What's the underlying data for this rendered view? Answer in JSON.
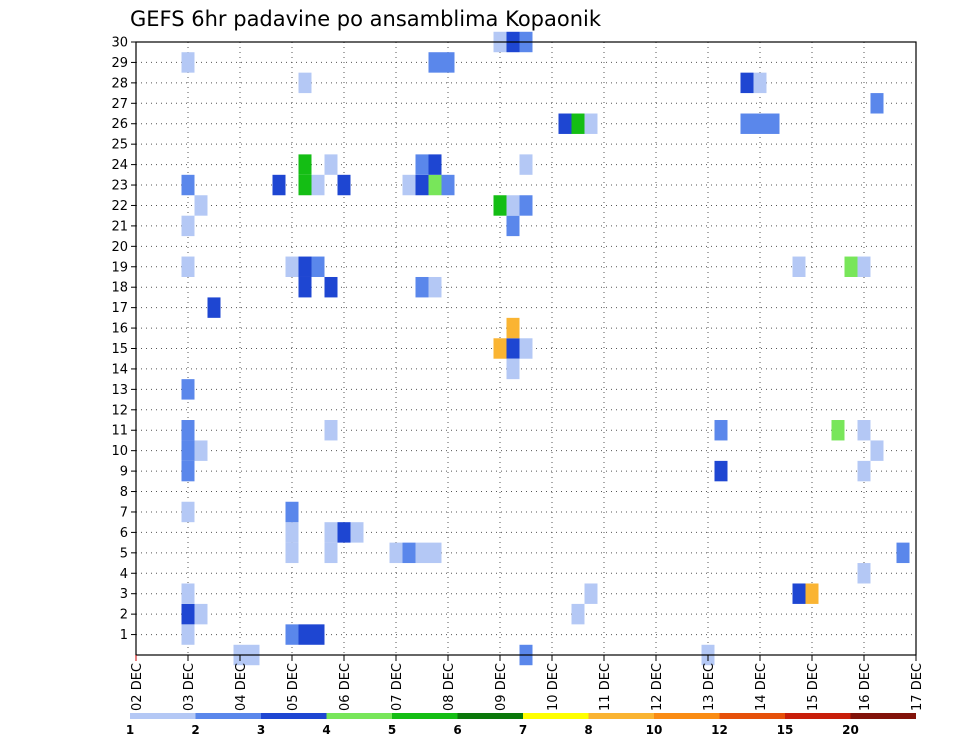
{
  "chart_data": {
    "type": "heatmap",
    "title": "GEFS 6hr padavine po ansamblima Kopaonik",
    "xlabel": "",
    "ylabel": "",
    "x_tick_labels": [
      "02 DEC",
      "03 DEC",
      "04 DEC",
      "05 DEC",
      "06 DEC",
      "07 DEC",
      "08 DEC",
      "09 DEC",
      "10 DEC",
      "11 DEC",
      "12 DEC",
      "13 DEC",
      "14 DEC",
      "15 DEC",
      "16 DEC",
      "17 DEC"
    ],
    "xlim": [
      0,
      15
    ],
    "ylim": [
      0,
      30
    ],
    "y_ticks": [
      1,
      2,
      3,
      4,
      5,
      6,
      7,
      8,
      9,
      10,
      11,
      12,
      13,
      14,
      15,
      16,
      17,
      18,
      19,
      20,
      21,
      22,
      23,
      24,
      25,
      26,
      27,
      28,
      29,
      30
    ],
    "grid": true,
    "steps_per_day": 4,
    "legend_levels": [
      {
        "label": "1",
        "color": "#b4c8f5"
      },
      {
        "label": "2",
        "color": "#5a87eb"
      },
      {
        "label": "3",
        "color": "#1e46d2"
      },
      {
        "label": "4",
        "color": "#78e65a"
      },
      {
        "label": "5",
        "color": "#14be14"
      },
      {
        "label": "6",
        "color": "#0a780a"
      },
      {
        "label": "7",
        "color": "#ffff00"
      },
      {
        "label": "8",
        "color": "#fab432"
      },
      {
        "label": "10",
        "color": "#fa8c14"
      },
      {
        "label": "12",
        "color": "#e6500a"
      },
      {
        "label": "15",
        "color": "#c81e0a"
      },
      {
        "label": "20",
        "color": "#82120a"
      },
      {
        "label": "",
        "color": "#6e0a0a"
      }
    ],
    "cells": [
      [
        1.0,
        1,
        1
      ],
      [
        1.0,
        2,
        3
      ],
      [
        1.0,
        3,
        1
      ],
      [
        1.0,
        7,
        1
      ],
      [
        1.0,
        9,
        2
      ],
      [
        1.0,
        10,
        2
      ],
      [
        1.0,
        11,
        2
      ],
      [
        1.0,
        13,
        2
      ],
      [
        1.0,
        19,
        1
      ],
      [
        1.0,
        21,
        1
      ],
      [
        1.0,
        23,
        2
      ],
      [
        1.0,
        29,
        1
      ],
      [
        1.25,
        2,
        1
      ],
      [
        1.25,
        10,
        1
      ],
      [
        1.25,
        22,
        1
      ],
      [
        1.5,
        17,
        3
      ],
      [
        2.0,
        0,
        1
      ],
      [
        2.25,
        0,
        1
      ],
      [
        3.0,
        1,
        2
      ],
      [
        3.0,
        5,
        1
      ],
      [
        3.0,
        6,
        1
      ],
      [
        3.0,
        7,
        2
      ],
      [
        3.0,
        19,
        1
      ],
      [
        3.25,
        1,
        3
      ],
      [
        3.25,
        18,
        3
      ],
      [
        3.25,
        19,
        3
      ],
      [
        3.25,
        23,
        5
      ],
      [
        3.25,
        24,
        5
      ],
      [
        3.25,
        28,
        1
      ],
      [
        3.5,
        1,
        3
      ],
      [
        3.5,
        19,
        2
      ],
      [
        3.5,
        23,
        1
      ],
      [
        2.75,
        23,
        3
      ],
      [
        3.75,
        6,
        1
      ],
      [
        3.75,
        5,
        1
      ],
      [
        3.75,
        11,
        1
      ],
      [
        3.75,
        18,
        3
      ],
      [
        3.75,
        24,
        1
      ],
      [
        4.0,
        6,
        3
      ],
      [
        4.0,
        23,
        3
      ],
      [
        4.25,
        6,
        1
      ],
      [
        5.0,
        5,
        1
      ],
      [
        5.25,
        5,
        2
      ],
      [
        5.5,
        5,
        1
      ],
      [
        5.75,
        5,
        1
      ],
      [
        5.25,
        23,
        1
      ],
      [
        5.5,
        23,
        3
      ],
      [
        5.5,
        24,
        2
      ],
      [
        5.5,
        18,
        2
      ],
      [
        5.75,
        18,
        1
      ],
      [
        5.75,
        23,
        4
      ],
      [
        5.75,
        24,
        3
      ],
      [
        6.0,
        23,
        2
      ],
      [
        6.0,
        29,
        2
      ],
      [
        5.75,
        29,
        2
      ],
      [
        7.0,
        15,
        8
      ],
      [
        7.0,
        22,
        5
      ],
      [
        7.25,
        15,
        3
      ],
      [
        7.25,
        16,
        8
      ],
      [
        7.25,
        14,
        1
      ],
      [
        7.25,
        21,
        2
      ],
      [
        7.25,
        22,
        1
      ],
      [
        7.5,
        15,
        1
      ],
      [
        7.5,
        22,
        2
      ],
      [
        7.5,
        24,
        1
      ],
      [
        7.0,
        30,
        1
      ],
      [
        7.25,
        30,
        3
      ],
      [
        7.5,
        30,
        2
      ],
      [
        7.5,
        0,
        2
      ],
      [
        8.25,
        26,
        3
      ],
      [
        8.5,
        26,
        5
      ],
      [
        8.75,
        26,
        1
      ],
      [
        8.5,
        2,
        1
      ],
      [
        8.75,
        3,
        1
      ],
      [
        11.0,
        0,
        1
      ],
      [
        11.25,
        9,
        3
      ],
      [
        11.25,
        11,
        2
      ],
      [
        11.75,
        26,
        2
      ],
      [
        12.0,
        26,
        2
      ],
      [
        12.25,
        26,
        2
      ],
      [
        11.75,
        28,
        3
      ],
      [
        12.0,
        28,
        1
      ],
      [
        12.75,
        3,
        3
      ],
      [
        13.0,
        3,
        8
      ],
      [
        12.75,
        19,
        1
      ],
      [
        13.5,
        11,
        4
      ],
      [
        13.75,
        19,
        4
      ],
      [
        14.0,
        19,
        1
      ],
      [
        14.0,
        11,
        1
      ],
      [
        14.0,
        9,
        1
      ],
      [
        14.25,
        10,
        1
      ],
      [
        14.0,
        4,
        1
      ],
      [
        14.25,
        27,
        2
      ],
      [
        14.75,
        5,
        2
      ]
    ]
  }
}
